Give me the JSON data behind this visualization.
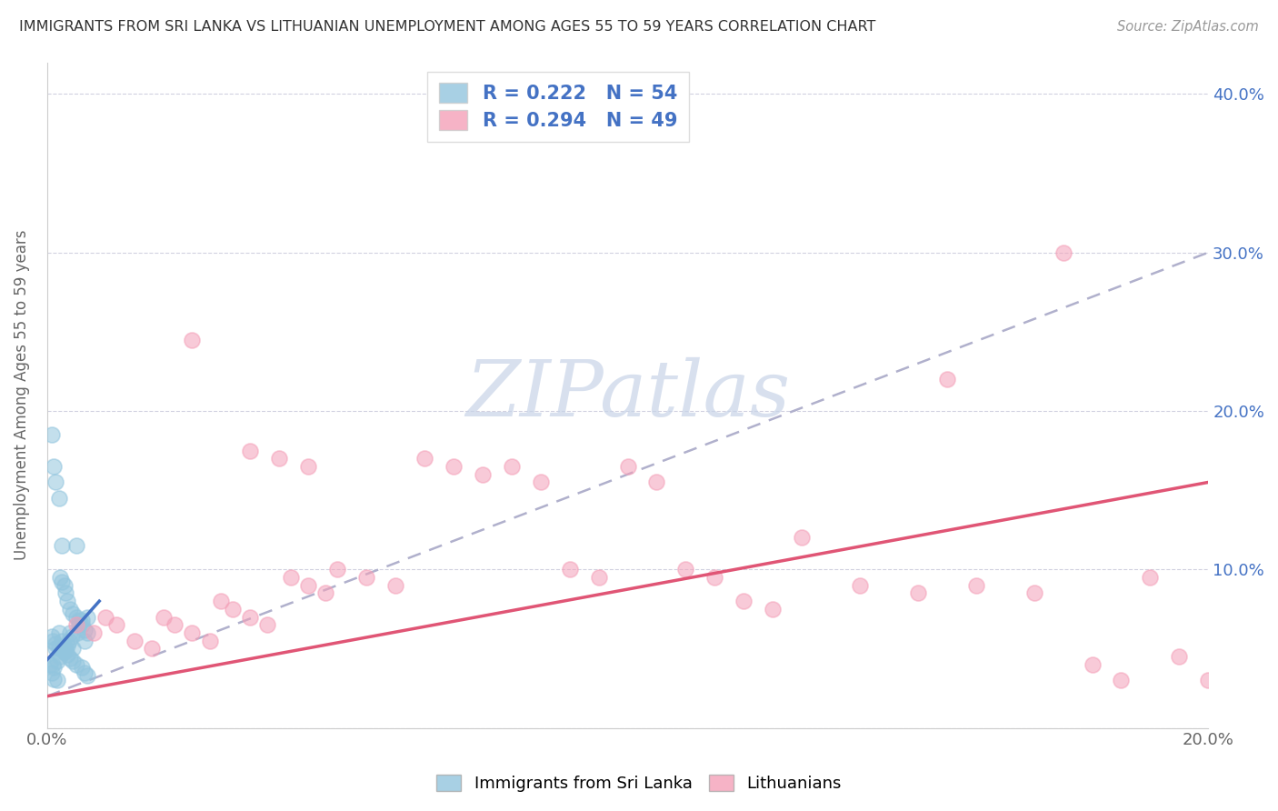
{
  "title": "IMMIGRANTS FROM SRI LANKA VS LITHUANIAN UNEMPLOYMENT AMONG AGES 55 TO 59 YEARS CORRELATION CHART",
  "source": "Source: ZipAtlas.com",
  "ylabel": "Unemployment Among Ages 55 to 59 years",
  "xlim": [
    0.0,
    0.2
  ],
  "ylim": [
    0.0,
    0.42
  ],
  "xtick_positions": [
    0.0,
    0.04,
    0.08,
    0.12,
    0.16,
    0.2
  ],
  "xtick_labels": [
    "0.0%",
    "",
    "",
    "",
    "",
    "20.0%"
  ],
  "ytick_positions": [
    0.0,
    0.1,
    0.2,
    0.3,
    0.4
  ],
  "ytick_labels_right": [
    "",
    "10.0%",
    "20.0%",
    "30.0%",
    "40.0%"
  ],
  "r_sri_lanka": 0.222,
  "n_sri_lanka": 54,
  "r_lithuanian": 0.294,
  "n_lithuanian": 49,
  "blue_color": "#92c5de",
  "pink_color": "#f4a0b8",
  "blue_line_color": "#4472c4",
  "pink_line_color": "#e05575",
  "dashed_line_color": "#b0b0cc",
  "watermark_color": "#c8d4e8",
  "sl_x": [
    0.0005,
    0.0008,
    0.001,
    0.0012,
    0.0015,
    0.0018,
    0.002,
    0.0022,
    0.0025,
    0.0028,
    0.003,
    0.0032,
    0.0035,
    0.0038,
    0.004,
    0.0042,
    0.0045,
    0.005,
    0.0052,
    0.0055,
    0.006,
    0.0065,
    0.007,
    0.0008,
    0.0012,
    0.0015,
    0.002,
    0.0022,
    0.0025,
    0.003,
    0.0032,
    0.0035,
    0.004,
    0.0045,
    0.005,
    0.0055,
    0.006,
    0.0065,
    0.007,
    0.0008,
    0.001,
    0.0015,
    0.002,
    0.0025,
    0.003,
    0.0035,
    0.004,
    0.0045,
    0.005,
    0.006,
    0.0065,
    0.007,
    0.0012,
    0.0018
  ],
  "sl_y": [
    0.04,
    0.035,
    0.04,
    0.038,
    0.05,
    0.042,
    0.06,
    0.045,
    0.055,
    0.048,
    0.05,
    0.05,
    0.052,
    0.055,
    0.06,
    0.058,
    0.05,
    0.07,
    0.06,
    0.065,
    0.068,
    0.055,
    0.07,
    0.185,
    0.165,
    0.155,
    0.145,
    0.095,
    0.092,
    0.09,
    0.085,
    0.08,
    0.075,
    0.072,
    0.115,
    0.068,
    0.065,
    0.062,
    0.06,
    0.058,
    0.055,
    0.053,
    0.051,
    0.115,
    0.048,
    0.046,
    0.044,
    0.042,
    0.04,
    0.038,
    0.035,
    0.033,
    0.031,
    0.03
  ],
  "lt_x": [
    0.005,
    0.008,
    0.01,
    0.012,
    0.015,
    0.018,
    0.02,
    0.022,
    0.025,
    0.028,
    0.03,
    0.032,
    0.035,
    0.038,
    0.04,
    0.042,
    0.045,
    0.048,
    0.05,
    0.055,
    0.06,
    0.065,
    0.07,
    0.075,
    0.08,
    0.085,
    0.09,
    0.095,
    0.1,
    0.105,
    0.11,
    0.115,
    0.12,
    0.125,
    0.13,
    0.14,
    0.15,
    0.155,
    0.16,
    0.17,
    0.175,
    0.18,
    0.185,
    0.19,
    0.195,
    0.2,
    0.025,
    0.035,
    0.045
  ],
  "lt_y": [
    0.065,
    0.06,
    0.07,
    0.065,
    0.055,
    0.05,
    0.07,
    0.065,
    0.06,
    0.055,
    0.08,
    0.075,
    0.07,
    0.065,
    0.17,
    0.095,
    0.09,
    0.085,
    0.1,
    0.095,
    0.09,
    0.17,
    0.165,
    0.16,
    0.165,
    0.155,
    0.1,
    0.095,
    0.165,
    0.155,
    0.1,
    0.095,
    0.08,
    0.075,
    0.12,
    0.09,
    0.085,
    0.22,
    0.09,
    0.085,
    0.3,
    0.04,
    0.03,
    0.095,
    0.045,
    0.03,
    0.245,
    0.175,
    0.165
  ],
  "lt_line_x": [
    0.0,
    0.2
  ],
  "lt_line_y": [
    0.02,
    0.155
  ],
  "dash_line_x": [
    0.0,
    0.2
  ],
  "dash_line_y": [
    0.02,
    0.3
  ]
}
